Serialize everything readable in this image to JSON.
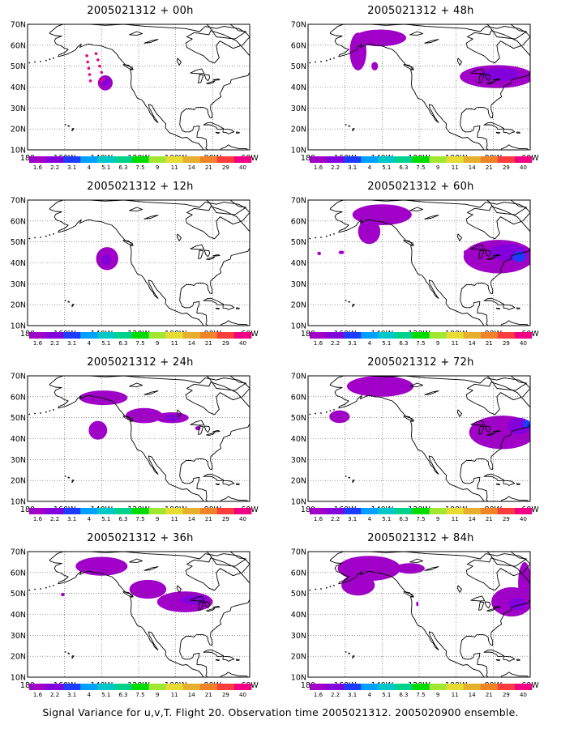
{
  "caption": "Signal Variance for u,v,T. Flight 20. Observation time 2005021312. 2005020900 ensemble.",
  "colors": {
    "land_fill": "#ffffff",
    "coast": "#000000",
    "grid": "#555555",
    "scale": [
      "#a000c8",
      "#8200dc",
      "#1e3cff",
      "#00a0ff",
      "#00c8c8",
      "#00d28c",
      "#00dc00",
      "#a0e632",
      "#e6dc32",
      "#e6af2d",
      "#f08228",
      "#fa3c3c",
      "#f00082"
    ]
  },
  "chart_data": [
    {
      "type": "heatmap",
      "title": "2005021312 + 00h",
      "x_ticks": [
        "180",
        "160W",
        "140W",
        "120W",
        "100W",
        "80W",
        "60W"
      ],
      "y_ticks": [
        "10N",
        "20N",
        "30N",
        "40N",
        "50N",
        "60N",
        "70N"
      ],
      "xlim": [
        -180,
        -60
      ],
      "ylim": [
        10,
        70
      ],
      "grid": true,
      "colorbar_labels": [
        "1.6",
        "2.2",
        "3.1",
        "4",
        "5.1",
        "6.3",
        "7.5",
        "9",
        "11",
        "14",
        "21",
        "29",
        "40"
      ],
      "blobs": [
        {
          "lon": -138,
          "lat": 42,
          "rlon": 4,
          "rlat": 3.6,
          "level": 0
        },
        {
          "lon": -138,
          "lat": 43,
          "rlon": 2.2,
          "rlat": 2.2,
          "level": 1
        }
      ],
      "obs_dots": [
        [
          -148,
          55
        ],
        [
          -147.5,
          52
        ],
        [
          -147,
          49
        ],
        [
          -146.5,
          46
        ],
        [
          -146,
          43
        ],
        [
          -143,
          56
        ],
        [
          -142,
          53
        ],
        [
          -141,
          50
        ],
        [
          -140,
          47
        ],
        [
          -139,
          44
        ],
        [
          -140,
          43
        ]
      ]
    },
    {
      "type": "heatmap",
      "title": "2005021312 + 48h",
      "x_ticks": [
        "180",
        "160W",
        "140W",
        "120W",
        "100W",
        "80W",
        "60W"
      ],
      "y_ticks": [
        "10N",
        "20N",
        "30N",
        "40N",
        "50N",
        "60N",
        "70N"
      ],
      "xlim": [
        -180,
        -60
      ],
      "ylim": [
        10,
        70
      ],
      "grid": true,
      "colorbar_labels": [
        "1.6",
        "2.2",
        "3.1",
        "4",
        "5.1",
        "6.3",
        "7.5",
        "9",
        "11",
        "14",
        "21",
        "29",
        "40"
      ],
      "blobs": [
        {
          "lon": -141,
          "lat": 63.5,
          "rlon": 14,
          "rlat": 4,
          "level": 0
        },
        {
          "lon": -153,
          "lat": 57,
          "rlon": 4.5,
          "rlat": 9,
          "level": 0
        },
        {
          "lon": -144,
          "lat": 50,
          "rlon": 1.8,
          "rlat": 2,
          "level": 0
        },
        {
          "lon": -78,
          "lat": 45,
          "rlon": 20,
          "rlat": 5.5,
          "level": 0
        },
        {
          "lon": -76,
          "lat": 46,
          "rlon": 10,
          "rlat": 3,
          "level": 1
        }
      ],
      "obs_dots": []
    },
    {
      "type": "heatmap",
      "title": "2005021312 + 12h",
      "x_ticks": [
        "180",
        "160W",
        "140W",
        "120W",
        "100W",
        "80W",
        "60W"
      ],
      "y_ticks": [
        "10N",
        "20N",
        "30N",
        "40N",
        "50N",
        "60N",
        "70N"
      ],
      "xlim": [
        -180,
        -60
      ],
      "ylim": [
        10,
        70
      ],
      "grid": true,
      "colorbar_labels": [
        "1.6",
        "2.2",
        "3.1",
        "4",
        "5.1",
        "6.3",
        "7.5",
        "9",
        "11",
        "14",
        "21",
        "29",
        "40"
      ],
      "blobs": [
        {
          "lon": -137,
          "lat": 42,
          "rlon": 6,
          "rlat": 5.5,
          "level": 0
        },
        {
          "lon": -137.5,
          "lat": 41.5,
          "rlon": 2.5,
          "rlat": 2.5,
          "level": 1
        }
      ],
      "obs_dots": []
    },
    {
      "type": "heatmap",
      "title": "2005021312 + 60h",
      "x_ticks": [
        "180",
        "160W",
        "140W",
        "120W",
        "100W",
        "80W",
        "60W"
      ],
      "y_ticks": [
        "10N",
        "20N",
        "30N",
        "40N",
        "50N",
        "60N",
        "70N"
      ],
      "xlim": [
        -180,
        -60
      ],
      "ylim": [
        10,
        70
      ],
      "grid": true,
      "colorbar_labels": [
        "1.6",
        "2.2",
        "3.1",
        "4",
        "5.1",
        "6.3",
        "7.5",
        "9",
        "11",
        "14",
        "21",
        "29",
        "40"
      ],
      "blobs": [
        {
          "lon": -140,
          "lat": 63,
          "rlon": 16,
          "rlat": 5,
          "level": 0
        },
        {
          "lon": -147,
          "lat": 55,
          "rlon": 6,
          "rlat": 6,
          "level": 0
        },
        {
          "lon": -77,
          "lat": 43,
          "rlon": 19,
          "rlat": 8,
          "level": 0
        },
        {
          "lon": -72,
          "lat": 45,
          "rlon": 10,
          "rlat": 4,
          "level": 1
        },
        {
          "lon": -66,
          "lat": 43,
          "rlon": 3.5,
          "rlat": 2.5,
          "level": 2
        },
        {
          "lon": -94,
          "lat": 45,
          "rlon": 2,
          "rlat": 1.3,
          "level": 0
        },
        {
          "lon": -174,
          "lat": 44.5,
          "rlon": 1,
          "rlat": 0.8,
          "level": 0
        },
        {
          "lon": -162,
          "lat": 45,
          "rlon": 1.5,
          "rlat": 0.8,
          "level": 0
        }
      ],
      "obs_dots": []
    },
    {
      "type": "heatmap",
      "title": "2005021312 + 24h",
      "x_ticks": [
        "180",
        "160W",
        "140W",
        "120W",
        "100W",
        "80W",
        "60W"
      ],
      "y_ticks": [
        "10N",
        "20N",
        "30N",
        "40N",
        "50N",
        "60N",
        "70N"
      ],
      "xlim": [
        -180,
        -60
      ],
      "ylim": [
        10,
        70
      ],
      "grid": true,
      "colorbar_labels": [
        "1.6",
        "2.2",
        "3.1",
        "4",
        "5.1",
        "6.3",
        "7.5",
        "9",
        "11",
        "14",
        "21",
        "29",
        "40"
      ],
      "blobs": [
        {
          "lon": -139,
          "lat": 59.5,
          "rlon": 13,
          "rlat": 3.5,
          "level": 0
        },
        {
          "lon": -117,
          "lat": 51,
          "rlon": 10,
          "rlat": 3.6,
          "level": 0
        },
        {
          "lon": -102,
          "lat": 50,
          "rlon": 9,
          "rlat": 2.6,
          "level": 0
        },
        {
          "lon": -102,
          "lat": 50,
          "rlon": 4,
          "rlat": 1.6,
          "level": 1
        },
        {
          "lon": -142,
          "lat": 44,
          "rlon": 5,
          "rlat": 4.5,
          "level": 0
        },
        {
          "lon": -88,
          "lat": 45,
          "rlon": 1.5,
          "rlat": 1,
          "level": 0
        }
      ],
      "obs_dots": []
    },
    {
      "type": "heatmap",
      "title": "2005021312 + 72h",
      "x_ticks": [
        "180",
        "160W",
        "140W",
        "120W",
        "100W",
        "80W",
        "60W"
      ],
      "y_ticks": [
        "10N",
        "20N",
        "30N",
        "40N",
        "50N",
        "60N",
        "70N"
      ],
      "xlim": [
        -180,
        -60
      ],
      "ylim": [
        10,
        70
      ],
      "grid": true,
      "colorbar_labels": [
        "1.6",
        "2.2",
        "3.1",
        "4",
        "5.1",
        "6.3",
        "7.5",
        "9",
        "11",
        "14",
        "21",
        "29",
        "40"
      ],
      "blobs": [
        {
          "lon": -141,
          "lat": 65,
          "rlon": 18,
          "rlat": 5,
          "level": 0
        },
        {
          "lon": -163,
          "lat": 50.5,
          "rlon": 5.5,
          "rlat": 3,
          "level": 0
        },
        {
          "lon": -75,
          "lat": 43,
          "rlon": 18,
          "rlat": 8,
          "level": 0
        },
        {
          "lon": -66,
          "lat": 46,
          "rlon": 6,
          "rlat": 4,
          "level": 1
        },
        {
          "lon": -62,
          "lat": 47,
          "rlon": 2,
          "rlat": 2,
          "level": 2
        }
      ],
      "obs_dots": []
    },
    {
      "type": "heatmap",
      "title": "2005021312 + 36h",
      "x_ticks": [
        "180",
        "160W",
        "140W",
        "120W",
        "100W",
        "80W",
        "60W"
      ],
      "y_ticks": [
        "10N",
        "20N",
        "30N",
        "40N",
        "50N",
        "60N",
        "70N"
      ],
      "xlim": [
        -180,
        -60
      ],
      "ylim": [
        10,
        70
      ],
      "grid": true,
      "colorbar_labels": [
        "1.6",
        "2.2",
        "3.1",
        "4",
        "5.1",
        "6.3",
        "7.5",
        "9",
        "11",
        "14",
        "21",
        "29",
        "40"
      ],
      "blobs": [
        {
          "lon": -140,
          "lat": 63,
          "rlon": 14,
          "rlat": 4.5,
          "level": 0
        },
        {
          "lon": -115,
          "lat": 52,
          "rlon": 10,
          "rlat": 4.5,
          "level": 0
        },
        {
          "lon": -95,
          "lat": 46,
          "rlon": 15,
          "rlat": 5,
          "level": 0
        },
        {
          "lon": -90,
          "lat": 47,
          "rlon": 7,
          "rlat": 2.3,
          "level": 1
        },
        {
          "lon": -161,
          "lat": 49.5,
          "rlon": 1,
          "rlat": 0.8,
          "level": 0
        }
      ],
      "obs_dots": []
    },
    {
      "type": "heatmap",
      "title": "2005021312 + 84h",
      "x_ticks": [
        "180",
        "160W",
        "140W",
        "120W",
        "100W",
        "80W",
        "60W"
      ],
      "y_ticks": [
        "10N",
        "20N",
        "30N",
        "40N",
        "50N",
        "60N",
        "70N"
      ],
      "xlim": [
        -180,
        -60
      ],
      "ylim": [
        10,
        70
      ],
      "grid": true,
      "colorbar_labels": [
        "1.6",
        "2.2",
        "3.1",
        "4",
        "5.1",
        "6.3",
        "7.5",
        "9",
        "11",
        "14",
        "21",
        "29",
        "40"
      ],
      "blobs": [
        {
          "lon": -147,
          "lat": 62,
          "rlon": 17,
          "rlat": 6,
          "level": 0
        },
        {
          "lon": -125,
          "lat": 62,
          "rlon": 8,
          "rlat": 2.5,
          "level": 0
        },
        {
          "lon": -153,
          "lat": 54,
          "rlon": 9,
          "rlat": 5,
          "level": 0
        },
        {
          "lon": -70,
          "lat": 46,
          "rlon": 11,
          "rlat": 7,
          "level": 0
        },
        {
          "lon": -63,
          "lat": 55,
          "rlon": 3.5,
          "rlat": 10,
          "level": 0
        },
        {
          "lon": -67,
          "lat": 45,
          "rlon": 4.5,
          "rlat": 3,
          "level": 1
        },
        {
          "lon": -121,
          "lat": 45,
          "rlon": 0.6,
          "rlat": 1.2,
          "level": 0
        }
      ],
      "obs_dots": []
    }
  ]
}
